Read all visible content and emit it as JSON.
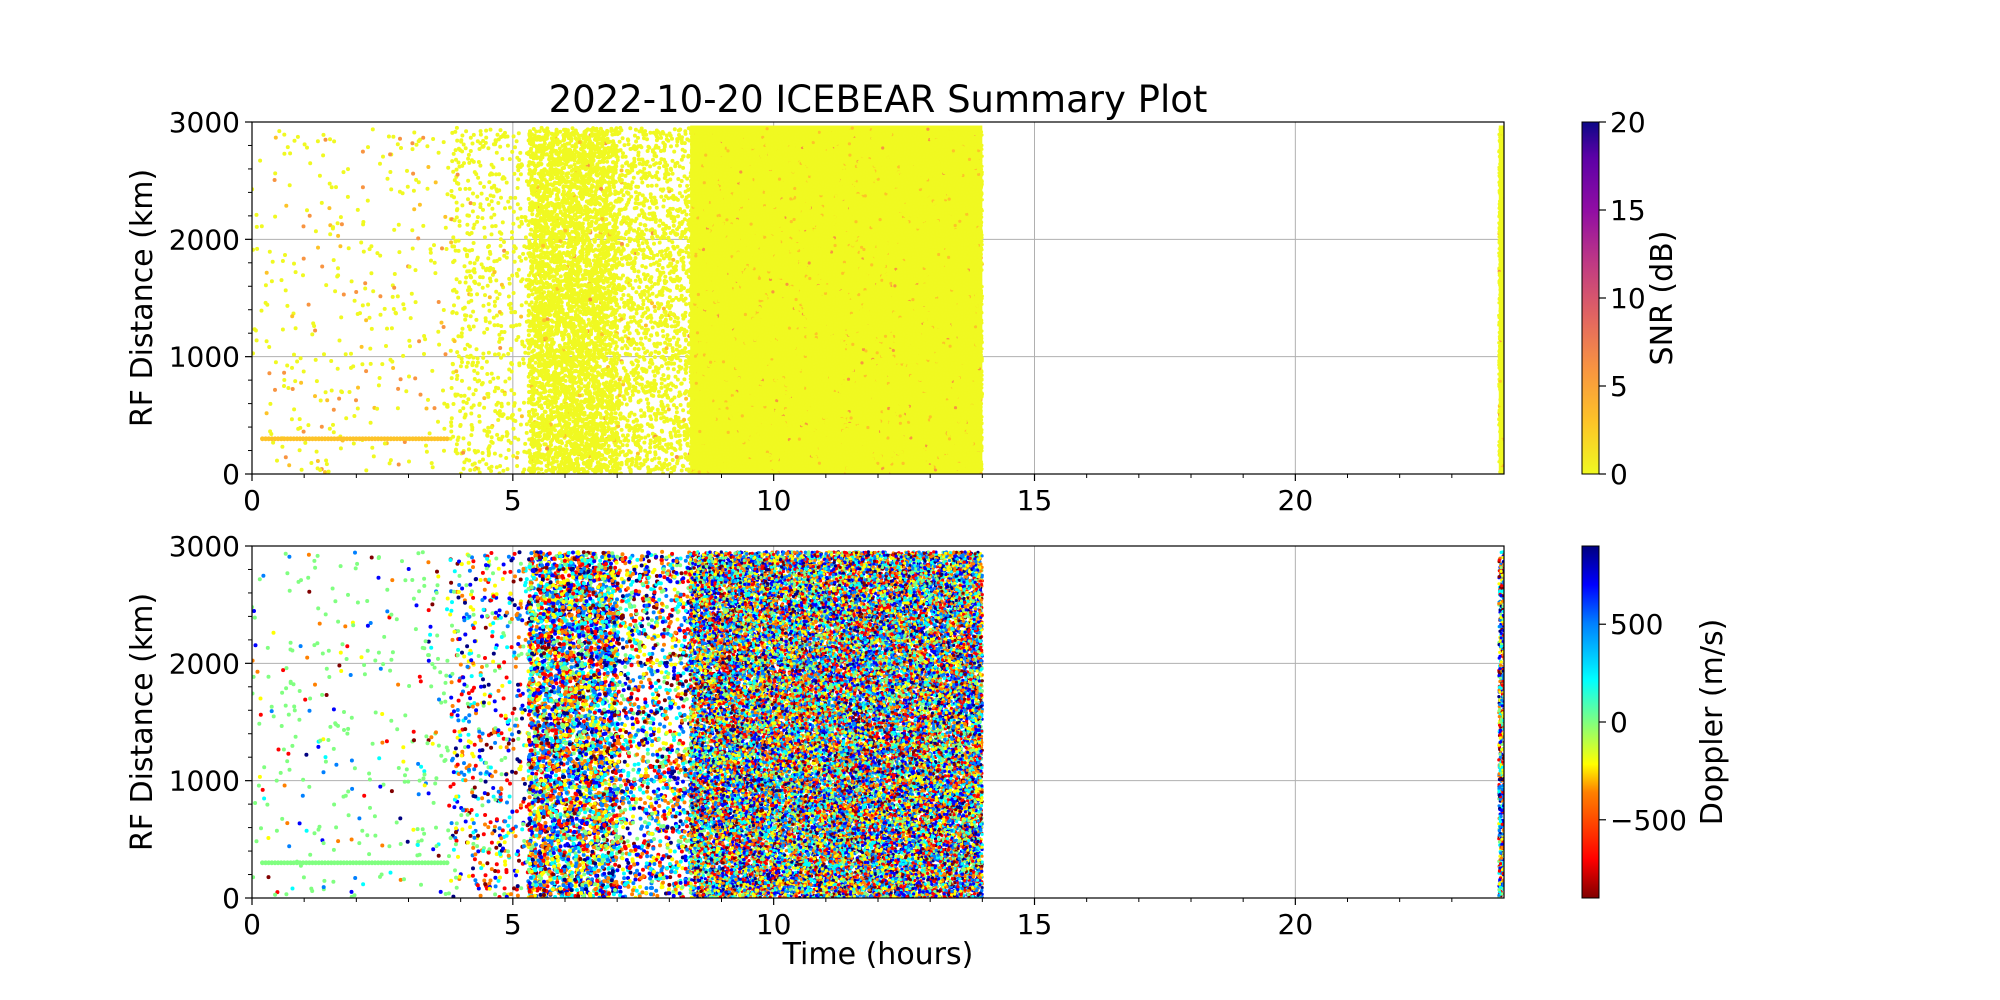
{
  "title": "2022-10-20 ICEBEAR Summary Plot",
  "chart_data": [
    {
      "type": "scatter",
      "panel": "top",
      "title": "",
      "xlabel": "",
      "ylabel": "RF Distance (km)",
      "xlim": [
        0,
        24
      ],
      "ylim": [
        0,
        3000
      ],
      "xticks": [
        "0",
        "5",
        "10",
        "15",
        "20"
      ],
      "yticks": [
        "0",
        "1000",
        "2000",
        "3000"
      ],
      "grid": true,
      "color_by": "SNR (dB)",
      "colorbar": {
        "label": "SNR (dB)",
        "range": [
          0,
          20
        ],
        "ticks": [
          "0",
          "5",
          "10",
          "15",
          "20"
        ],
        "colormap": "plasma_r"
      },
      "activity_bands": [
        {
          "time_start": 0.0,
          "time_end": 3.8,
          "density": "sparse",
          "snr_typical": 2
        },
        {
          "time_start": 3.8,
          "time_end": 5.3,
          "density": "light",
          "snr_typical": 0.5
        },
        {
          "time_start": 5.3,
          "time_end": 7.0,
          "density": "dense",
          "snr_typical": 0.5
        },
        {
          "time_start": 7.0,
          "time_end": 8.4,
          "density": "medium",
          "snr_typical": 0.5
        },
        {
          "time_start": 8.4,
          "time_end": 14.0,
          "density": "saturated",
          "snr_typical": 0.5
        },
        {
          "time_start": 23.9,
          "time_end": 24.0,
          "density": "saturated",
          "snr_typical": 0.5
        }
      ],
      "highlight_line": {
        "range_km": 300,
        "time_start": 0.2,
        "time_end": 3.8,
        "snr": 4
      }
    },
    {
      "type": "scatter",
      "panel": "bottom",
      "title": "",
      "xlabel": "Time (hours)",
      "ylabel": "RF Distance (km)",
      "xlim": [
        0,
        24
      ],
      "ylim": [
        0,
        3000
      ],
      "xticks": [
        "0",
        "5",
        "10",
        "15",
        "20"
      ],
      "yticks": [
        "0",
        "1000",
        "2000",
        "3000"
      ],
      "grid": true,
      "color_by": "Doppler (m/s)",
      "colorbar": {
        "label": "Doppler (m/s)",
        "range": [
          -900,
          900
        ],
        "ticks": [
          "−500",
          "0",
          "500"
        ],
        "tick_values": [
          -500,
          0,
          500
        ],
        "colormap": "jet_r"
      },
      "activity_bands": [
        {
          "time_start": 0.0,
          "time_end": 3.8,
          "density": "sparse"
        },
        {
          "time_start": 3.8,
          "time_end": 5.3,
          "density": "light"
        },
        {
          "time_start": 5.3,
          "time_end": 7.0,
          "density": "dense"
        },
        {
          "time_start": 7.0,
          "time_end": 8.4,
          "density": "medium"
        },
        {
          "time_start": 8.4,
          "time_end": 14.0,
          "density": "saturated"
        },
        {
          "time_start": 23.9,
          "time_end": 24.0,
          "density": "saturated"
        }
      ],
      "highlight_line": {
        "range_km": 300,
        "time_start": 0.2,
        "time_end": 3.8,
        "doppler": 50
      }
    }
  ]
}
